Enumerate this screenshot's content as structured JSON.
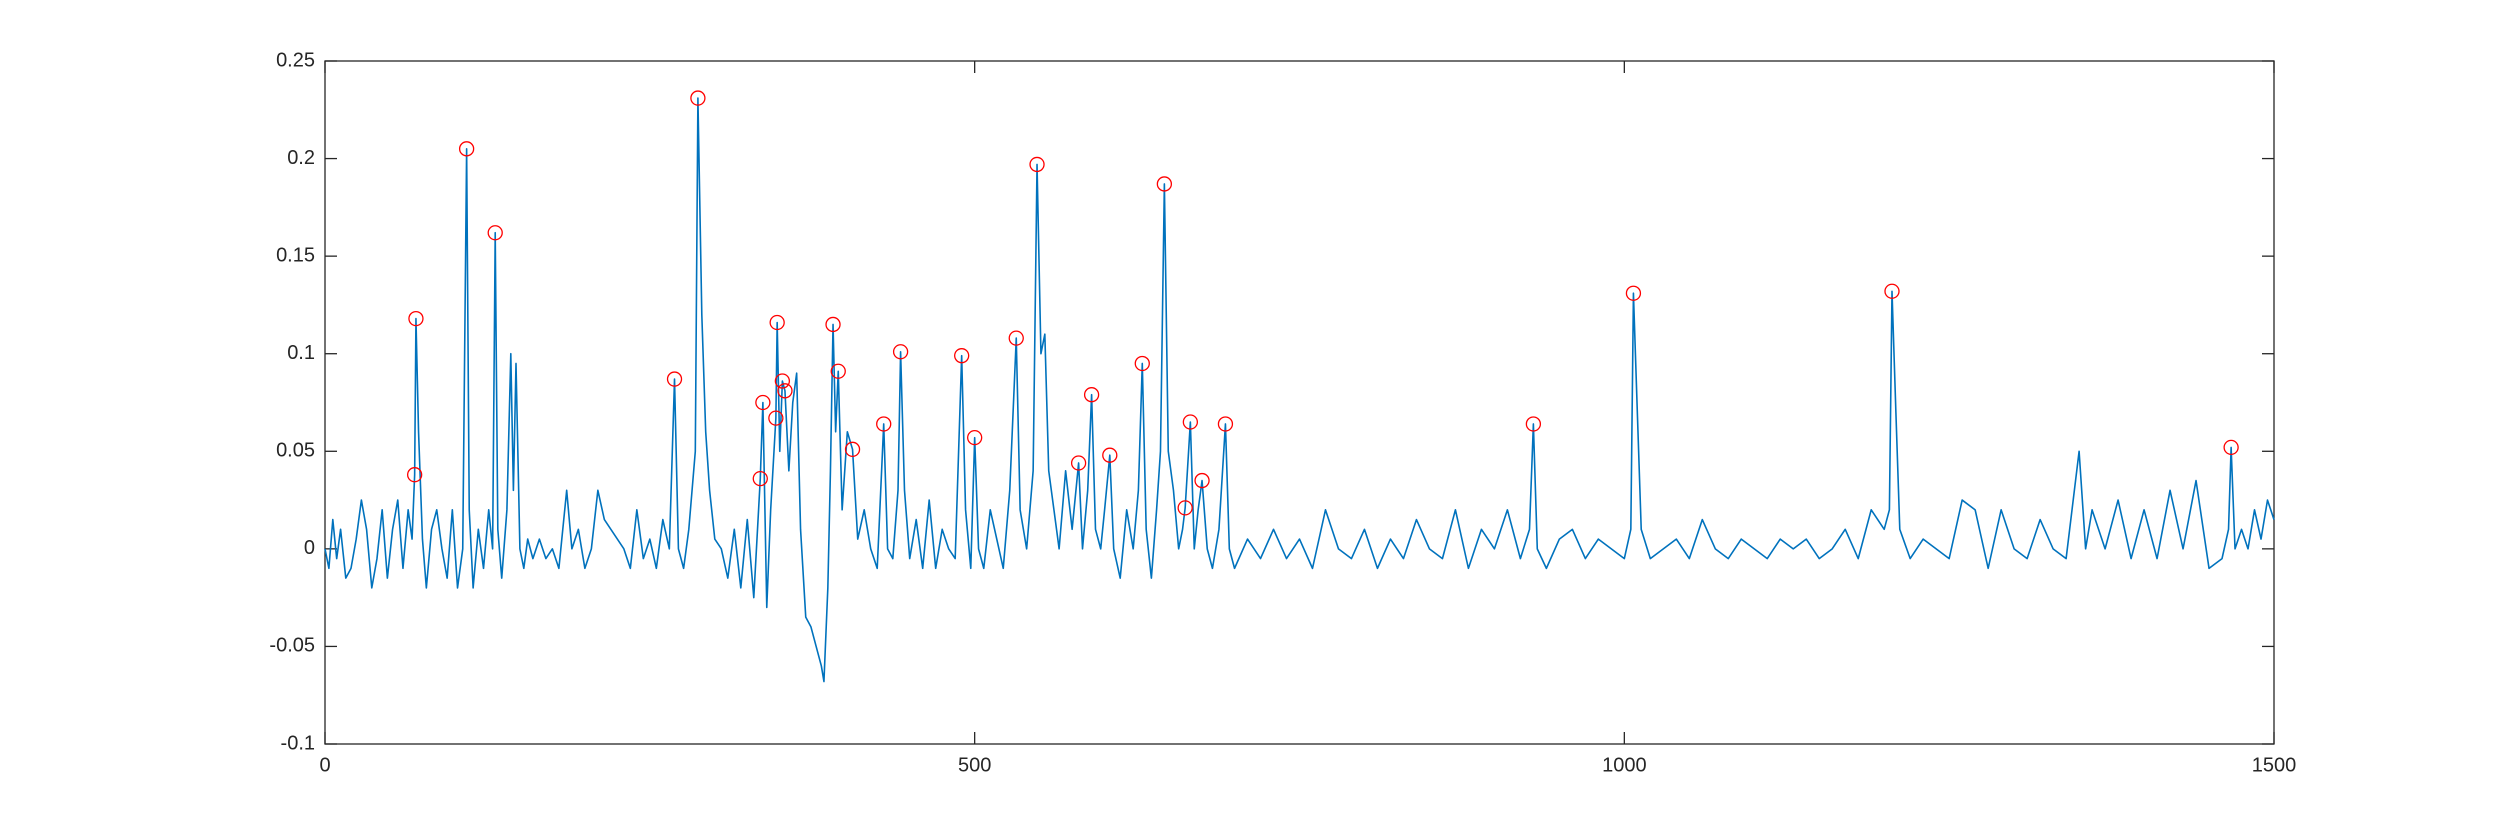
{
  "chart_data": {
    "type": "line",
    "xlim": [
      0,
      1500
    ],
    "ylim": [
      -0.1,
      0.25
    ],
    "xticks": [
      0,
      500,
      1000,
      1500
    ],
    "yticks": [
      -0.1,
      -0.05,
      0,
      0.05,
      0.1,
      0.15,
      0.2,
      0.25
    ],
    "line": {
      "color": "#0072bd",
      "x": [
        0,
        3,
        6,
        9,
        12,
        16,
        20,
        24,
        28,
        32,
        36,
        40,
        44,
        48,
        52,
        56,
        60,
        64,
        67,
        69,
        70,
        72,
        75,
        78,
        82,
        86,
        90,
        94,
        98,
        102,
        106,
        109,
        111,
        114,
        118,
        122,
        126,
        129,
        131,
        133,
        136,
        140,
        143,
        145,
        147,
        150,
        153,
        156,
        160,
        165,
        170,
        175,
        180,
        186,
        190,
        195,
        200,
        205,
        210,
        215,
        220,
        225,
        230,
        235,
        240,
        245,
        250,
        255,
        260,
        265,
        269,
        272,
        276,
        280,
        285,
        287,
        290,
        293,
        296,
        300,
        305,
        310,
        315,
        320,
        325,
        330,
        335,
        337,
        340,
        343,
        347,
        348,
        350,
        352,
        354,
        357,
        360,
        363,
        366,
        370,
        374,
        378,
        382,
        384,
        387,
        389,
        391,
        393,
        395,
        398,
        402,
        406,
        410,
        415,
        420,
        425,
        430,
        433,
        437,
        441,
        443,
        446,
        450,
        455,
        460,
        465,
        470,
        475,
        480,
        485,
        490,
        493,
        497,
        500,
        503,
        507,
        512,
        517,
        522,
        527,
        532,
        535,
        540,
        545,
        548,
        551,
        554,
        557,
        561,
        565,
        570,
        575,
        580,
        583,
        587,
        590,
        593,
        597,
        600,
        604,
        607,
        612,
        617,
        622,
        626,
        629,
        632,
        636,
        640,
        643,
        646,
        649,
        653,
        657,
        660,
        662,
        666,
        669,
        672,
        675,
        679,
        683,
        688,
        693,
        696,
        700,
        710,
        720,
        730,
        740,
        750,
        760,
        770,
        780,
        790,
        800,
        810,
        820,
        830,
        840,
        850,
        860,
        870,
        880,
        890,
        900,
        910,
        920,
        927,
        930,
        933,
        940,
        950,
        960,
        970,
        980,
        990,
        1000,
        1005,
        1007,
        1010,
        1013,
        1020,
        1030,
        1040,
        1050,
        1060,
        1070,
        1080,
        1090,
        1100,
        1110,
        1120,
        1130,
        1140,
        1150,
        1160,
        1170,
        1180,
        1190,
        1200,
        1204,
        1206,
        1209,
        1212,
        1220,
        1230,
        1240,
        1250,
        1260,
        1270,
        1280,
        1290,
        1300,
        1310,
        1320,
        1330,
        1340,
        1350,
        1355,
        1360,
        1370,
        1380,
        1390,
        1400,
        1410,
        1420,
        1430,
        1440,
        1450,
        1460,
        1465,
        1467,
        1470,
        1475,
        1480,
        1485,
        1490,
        1495,
        1500
      ],
      "values": [
        0,
        -0.01,
        0.015,
        -0.005,
        0.01,
        -0.015,
        -0.01,
        0.005,
        0.025,
        0.01,
        -0.02,
        -0.005,
        0.02,
        -0.015,
        0.01,
        0.025,
        -0.01,
        0.02,
        0.005,
        0.038,
        0.118,
        0.06,
        0.005,
        -0.02,
        0.01,
        0.02,
        0,
        -0.015,
        0.02,
        -0.02,
        0,
        0.205,
        0.02,
        -0.02,
        0.01,
        -0.01,
        0.02,
        0,
        0.162,
        0.01,
        -0.015,
        0.02,
        0.1,
        0.03,
        0.095,
        0,
        -0.01,
        0.005,
        -0.005,
        0.005,
        -0.005,
        0,
        -0.01,
        0.03,
        0,
        0.01,
        -0.01,
        0,
        0.03,
        0.015,
        0.01,
        0.005,
        0,
        -0.01,
        0.02,
        -0.005,
        0.005,
        -0.01,
        0.015,
        0,
        0.087,
        0,
        -0.01,
        0.01,
        0.05,
        0.231,
        0.12,
        0.06,
        0.03,
        0.005,
        0,
        -0.015,
        0.01,
        -0.02,
        0.015,
        -0.025,
        0.036,
        0.075,
        -0.03,
        0.02,
        0.067,
        0.116,
        0.05,
        0.086,
        0.081,
        0.04,
        0.075,
        0.09,
        0.01,
        -0.035,
        -0.04,
        -0.05,
        -0.06,
        -0.068,
        -0.02,
        0.04,
        0.115,
        0.06,
        0.091,
        0.02,
        0.06,
        0.051,
        0.005,
        0.02,
        0,
        -0.01,
        0.064,
        0,
        -0.005,
        0.03,
        0.101,
        0.03,
        -0.005,
        0.015,
        -0.01,
        0.025,
        -0.01,
        0.01,
        0,
        -0.005,
        0.099,
        0.02,
        -0.01,
        0.057,
        0,
        -0.01,
        0.02,
        0.005,
        -0.01,
        0.03,
        0.108,
        0.02,
        0,
        0.04,
        0.197,
        0.1,
        0.11,
        0.04,
        0.02,
        0,
        0.04,
        0.01,
        0.044,
        0,
        0.03,
        0.079,
        0.01,
        0,
        0.02,
        0.048,
        0,
        -0.015,
        0.02,
        0,
        0.03,
        0.095,
        0.01,
        -0.015,
        0.02,
        0.05,
        0.187,
        0.05,
        0.03,
        0,
        0.01,
        0.021,
        0.065,
        0,
        0.02,
        0.035,
        0,
        -0.01,
        0.01,
        0.064,
        0,
        -0.01,
        0.005,
        -0.005,
        0.01,
        -0.005,
        0.005,
        -0.01,
        0.02,
        0,
        -0.005,
        0.01,
        -0.01,
        0.005,
        -0.005,
        0.015,
        0,
        -0.005,
        0.02,
        -0.01,
        0.01,
        0,
        0.02,
        -0.005,
        0.01,
        0.064,
        0,
        -0.01,
        0.005,
        0.01,
        -0.005,
        0.005,
        0,
        -0.005,
        0.01,
        0.131,
        0.07,
        0.01,
        -0.005,
        0,
        0.005,
        -0.005,
        0.015,
        0,
        -0.005,
        0.005,
        0,
        -0.005,
        0.005,
        0,
        0.005,
        -0.005,
        0,
        0.01,
        -0.005,
        0.02,
        0.01,
        0.02,
        0.132,
        0.07,
        0.01,
        -0.005,
        0.005,
        0,
        -0.005,
        0.025,
        0.02,
        -0.01,
        0.02,
        0,
        -0.005,
        0.015,
        0,
        -0.005,
        0.05,
        0,
        0.02,
        0,
        0.025,
        -0.005,
        0.02,
        -0.005,
        0.03,
        0,
        0.035,
        -0.01,
        -0.005,
        0.01,
        0.052,
        0,
        0.01,
        0,
        0.02,
        0.005,
        0.025,
        0.015
      ]
    },
    "peaks": {
      "color": "#ff0000",
      "x": [
        69,
        70,
        109,
        131,
        269,
        287,
        335,
        337,
        347,
        348,
        352,
        354,
        391,
        395,
        406,
        430,
        443,
        490,
        500,
        532,
        548,
        580,
        590,
        604,
        629,
        646,
        662,
        666,
        675,
        693,
        930,
        1007,
        1206,
        1467
      ],
      "values": [
        0.038,
        0.118,
        0.205,
        0.162,
        0.087,
        0.231,
        0.036,
        0.075,
        0.067,
        0.116,
        0.086,
        0.081,
        0.115,
        0.091,
        0.051,
        0.064,
        0.101,
        0.099,
        0.057,
        0.108,
        0.197,
        0.044,
        0.079,
        0.048,
        0.095,
        0.187,
        0.021,
        0.065,
        0.035,
        0.064,
        0.064,
        0.131,
        0.132,
        0.052
      ]
    }
  }
}
